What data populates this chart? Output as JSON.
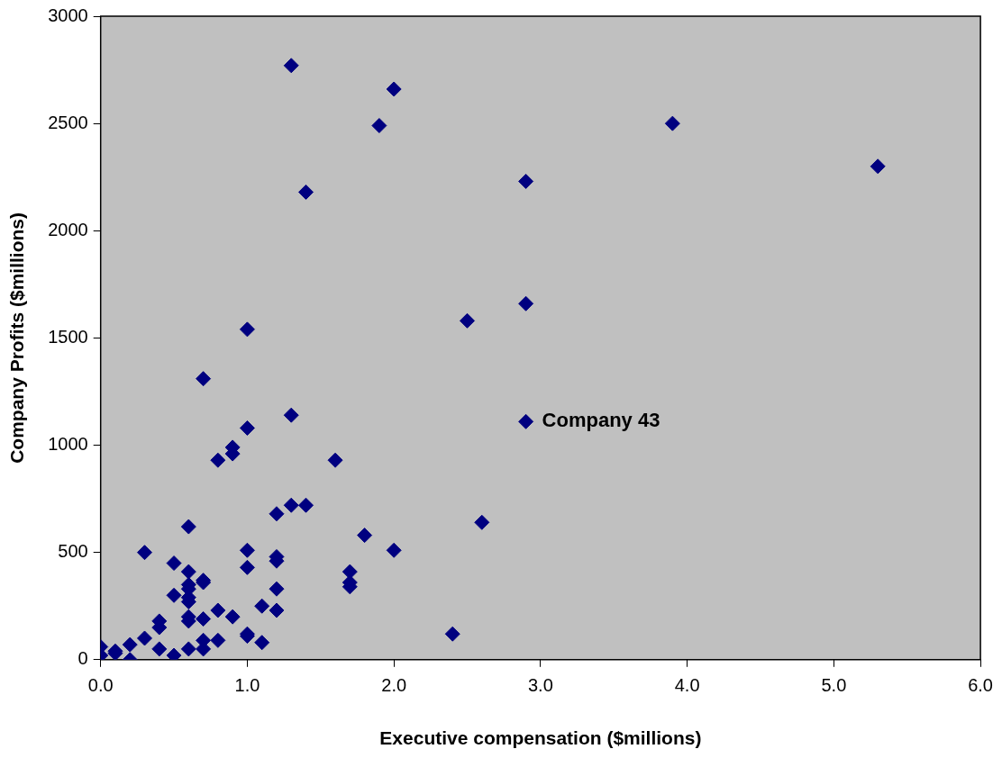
{
  "chart_data": {
    "type": "scatter",
    "xlabel": "Executive compensation ($millions)",
    "ylabel": "Company Profits ($millions)",
    "x": [
      0.0,
      0.0,
      0.1,
      0.1,
      0.2,
      0.2,
      0.3,
      0.3,
      0.4,
      0.4,
      0.4,
      0.5,
      0.5,
      0.5,
      0.6,
      0.6,
      0.6,
      0.6,
      0.6,
      0.6,
      0.6,
      0.6,
      0.6,
      0.7,
      0.7,
      0.7,
      0.7,
      0.7,
      0.7,
      0.8,
      0.8,
      0.8,
      0.9,
      0.9,
      0.9,
      1.0,
      1.0,
      1.0,
      1.0,
      1.0,
      1.0,
      1.1,
      1.1,
      1.2,
      1.2,
      1.2,
      1.2,
      1.2,
      1.3,
      1.3,
      1.3,
      1.4,
      1.4,
      1.6,
      1.7,
      1.7,
      1.7,
      1.8,
      1.9,
      2.0,
      2.0,
      2.4,
      2.5,
      2.6,
      2.9,
      2.9,
      2.9,
      3.9,
      5.3
    ],
    "series": [
      {
        "color": "#000080",
        "values": [
          60,
          20,
          40,
          30,
          70,
          0,
          100,
          500,
          180,
          150,
          50,
          20,
          300,
          450,
          620,
          410,
          350,
          330,
          290,
          270,
          200,
          180,
          50,
          1310,
          370,
          360,
          190,
          90,
          50,
          930,
          230,
          90,
          990,
          960,
          200,
          1540,
          1080,
          510,
          430,
          120,
          110,
          250,
          80,
          680,
          480,
          460,
          330,
          230,
          2770,
          1140,
          720,
          2180,
          720,
          930,
          410,
          360,
          340,
          580,
          2490,
          2660,
          510,
          120,
          1580,
          640,
          2230,
          1660,
          1110,
          2500,
          2300
        ]
      }
    ],
    "annotations": [
      {
        "text": "Company 43",
        "x": 2.9,
        "y": 1110
      }
    ],
    "xlim": [
      0,
      6
    ],
    "xticks": [
      {
        "value": 0,
        "label": "0.0"
      },
      {
        "value": 1,
        "label": "1.0"
      },
      {
        "value": 2,
        "label": "2.0"
      },
      {
        "value": 3,
        "label": "3.0"
      },
      {
        "value": 4,
        "label": "4.0"
      },
      {
        "value": 5,
        "label": "5.0"
      },
      {
        "value": 6,
        "label": "6.0"
      }
    ],
    "ylim": [
      0,
      3000
    ],
    "yticks": [
      0,
      500,
      1000,
      1500,
      2000,
      2500,
      3000
    ],
    "marker": "diamond",
    "grid": false,
    "legend": false
  }
}
